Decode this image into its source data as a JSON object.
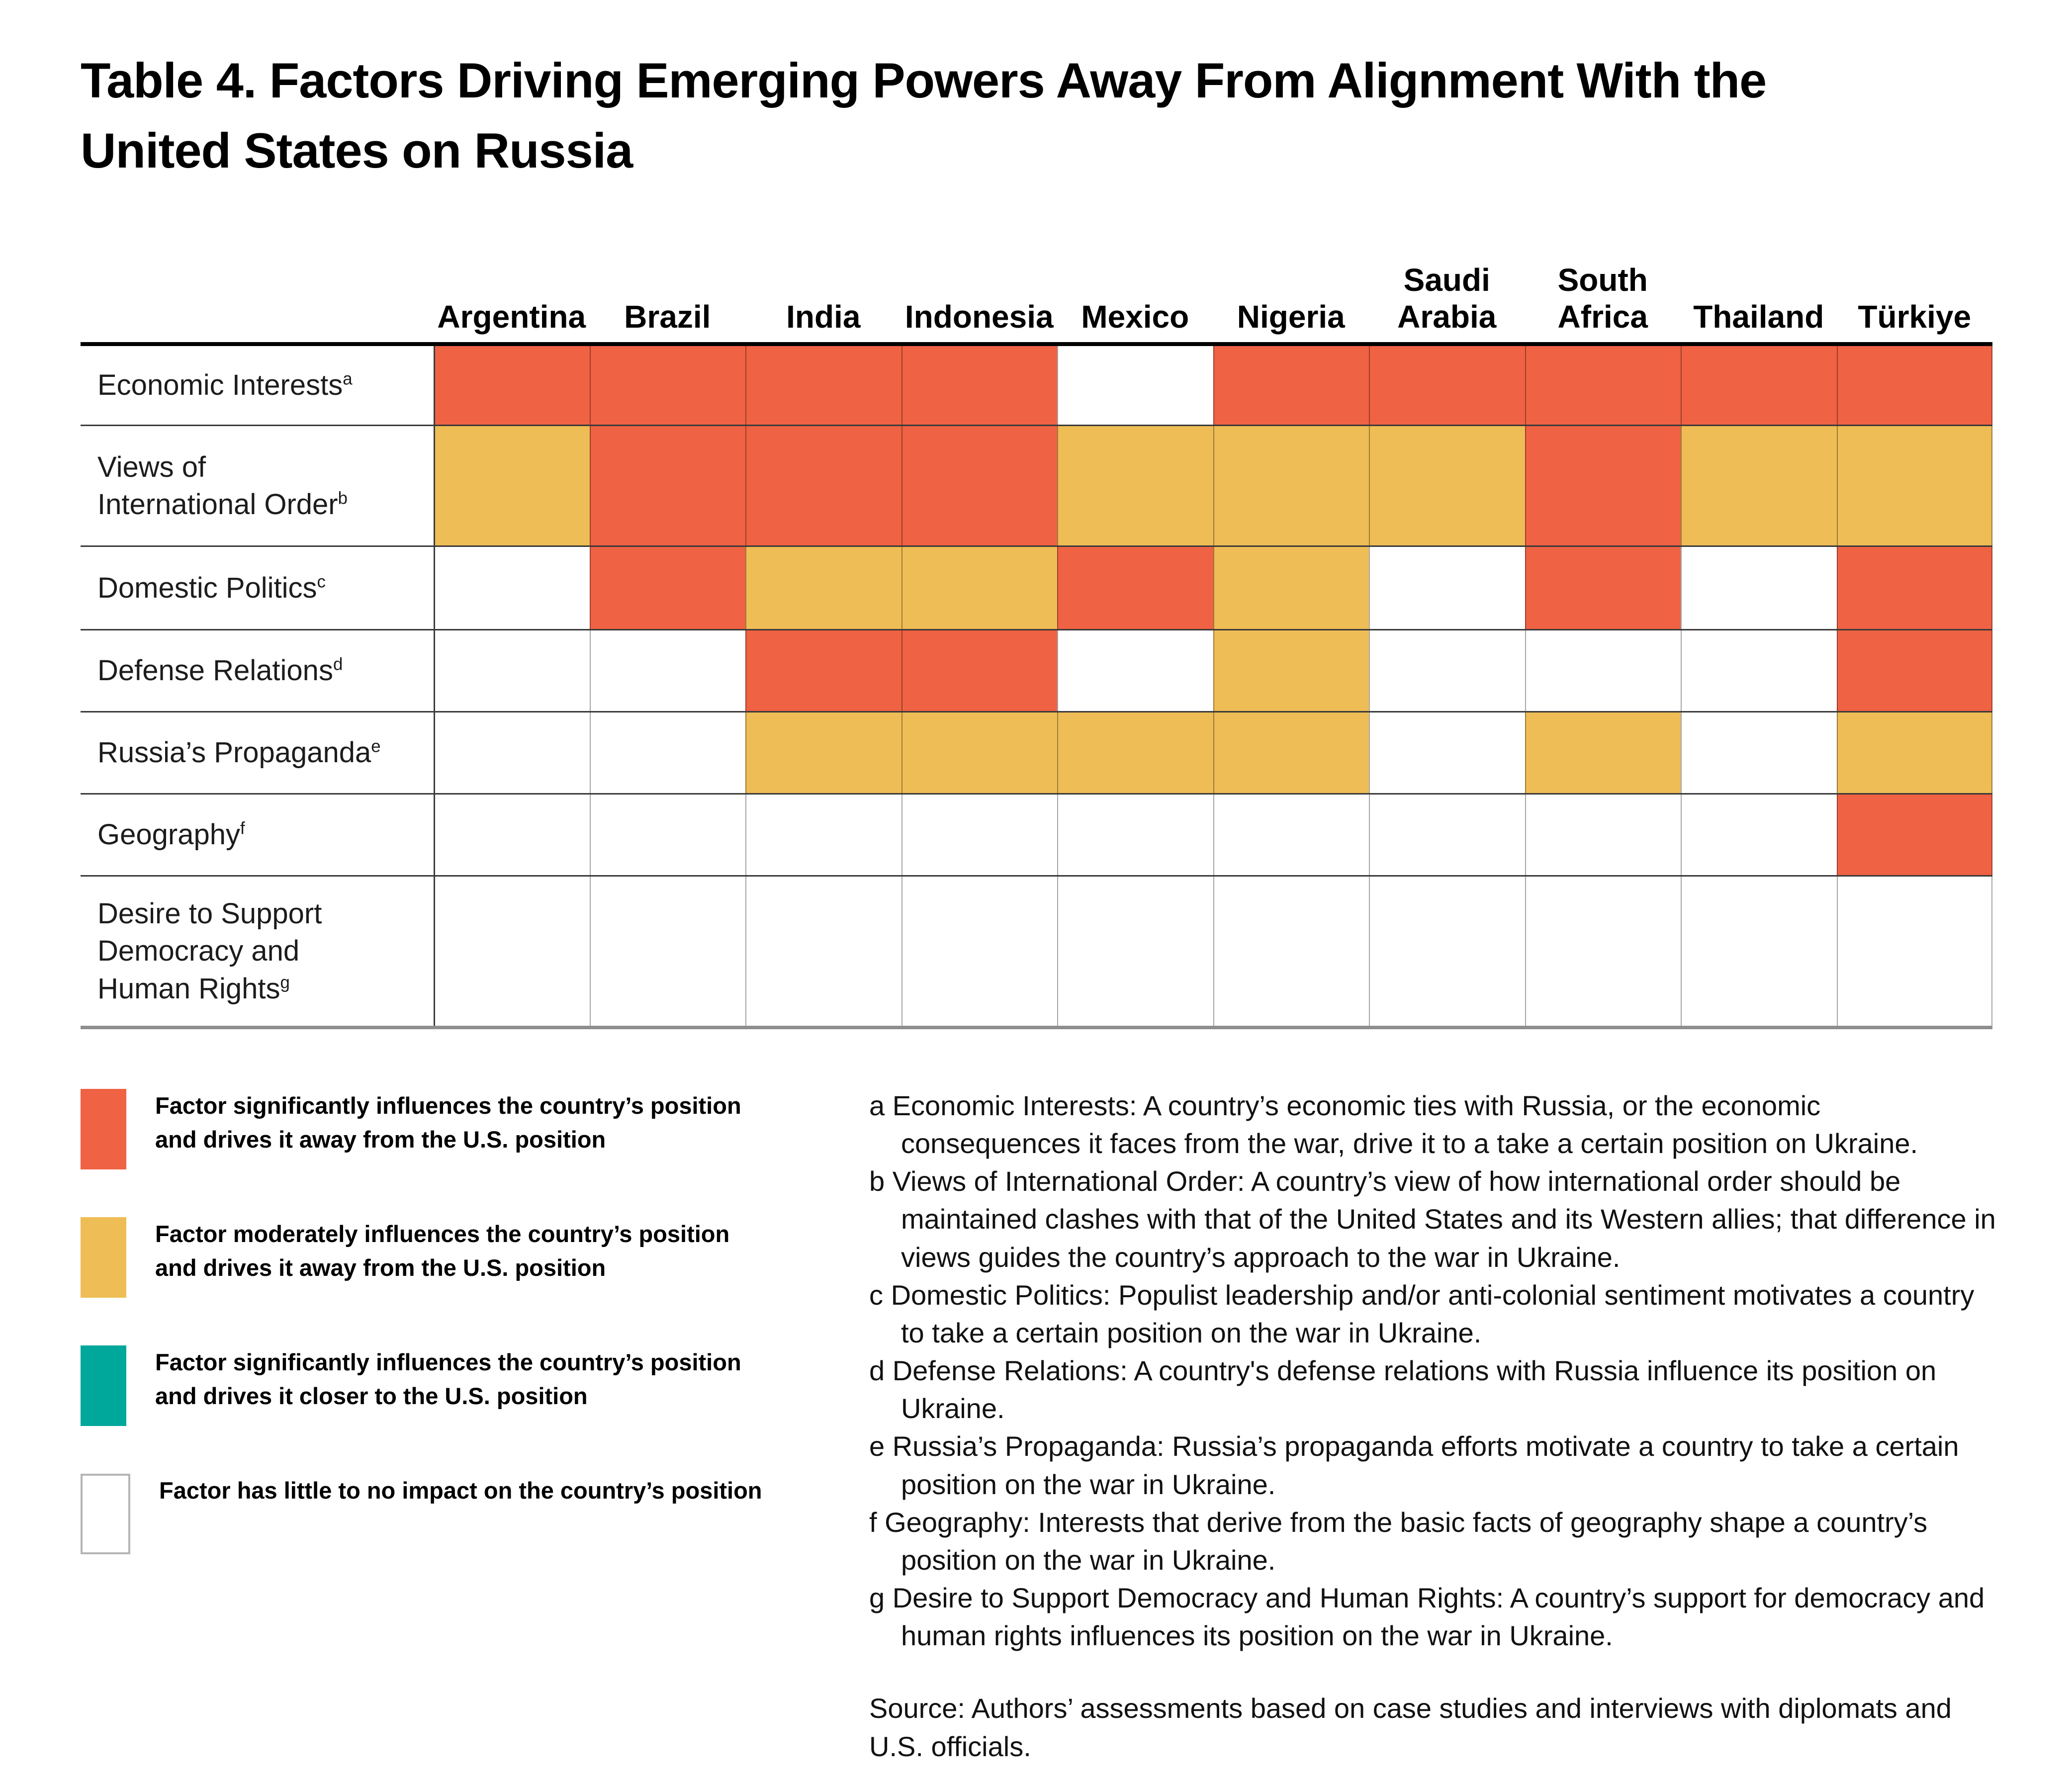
{
  "chart_data": {
    "type": "heatmap",
    "title": "Table 4. Factors Driving Emerging Powers Away From Alignment With the United States on Russia",
    "columns": [
      {
        "name": "argentina",
        "lines": [
          "Argentina"
        ]
      },
      {
        "name": "brazil",
        "lines": [
          "Brazil"
        ]
      },
      {
        "name": "india",
        "lines": [
          "India"
        ]
      },
      {
        "name": "indonesia",
        "lines": [
          "Indonesia"
        ]
      },
      {
        "name": "mexico",
        "lines": [
          "Mexico"
        ]
      },
      {
        "name": "nigeria",
        "lines": [
          "Nigeria"
        ]
      },
      {
        "name": "saudi-arabia",
        "lines": [
          "Saudi",
          "Arabia"
        ]
      },
      {
        "name": "south-africa",
        "lines": [
          "South",
          "Africa"
        ]
      },
      {
        "name": "thailand",
        "lines": [
          "Thailand"
        ]
      },
      {
        "name": "turkiye",
        "lines": [
          "Türkiye"
        ]
      }
    ],
    "rows": [
      {
        "name": "economic-interests",
        "label_lines": [
          "Economic Interests"
        ],
        "sup": "a",
        "cells": [
          "sig_away",
          "sig_away",
          "sig_away",
          "sig_away",
          "none",
          "sig_away",
          "sig_away",
          "sig_away",
          "sig_away",
          "sig_away"
        ]
      },
      {
        "name": "views-of-international-order",
        "label_lines": [
          "Views of",
          "International Order"
        ],
        "sup": "b",
        "cells": [
          "mod_away",
          "sig_away",
          "sig_away",
          "sig_away",
          "mod_away",
          "mod_away",
          "mod_away",
          "sig_away",
          "mod_away",
          "mod_away"
        ]
      },
      {
        "name": "domestic-politics",
        "label_lines": [
          "Domestic Politics"
        ],
        "sup": "c",
        "cells": [
          "none",
          "sig_away",
          "mod_away",
          "mod_away",
          "sig_away",
          "mod_away",
          "none",
          "sig_away",
          "none",
          "sig_away"
        ]
      },
      {
        "name": "defense-relations",
        "label_lines": [
          "Defense Relations"
        ],
        "sup": "d",
        "cells": [
          "none",
          "none",
          "sig_away",
          "sig_away",
          "none",
          "mod_away",
          "none",
          "none",
          "none",
          "sig_away"
        ]
      },
      {
        "name": "russias-propaganda",
        "label_lines": [
          "Russia’s Propaganda"
        ],
        "sup": "e",
        "cells": [
          "none",
          "none",
          "mod_away",
          "mod_away",
          "mod_away",
          "mod_away",
          "none",
          "mod_away",
          "none",
          "mod_away"
        ]
      },
      {
        "name": "geography",
        "label_lines": [
          "Geography"
        ],
        "sup": "f",
        "cells": [
          "none",
          "none",
          "none",
          "none",
          "none",
          "none",
          "none",
          "none",
          "none",
          "sig_away"
        ]
      },
      {
        "name": "desire-to-support-democracy-and-human-rights",
        "label_lines": [
          "Desire to Support",
          "Democracy and",
          "Human Rights"
        ],
        "sup": "g",
        "cells": [
          "none",
          "none",
          "none",
          "none",
          "none",
          "none",
          "none",
          "none",
          "none",
          "none"
        ]
      }
    ],
    "colors": {
      "sig_away": "#EF6243",
      "mod_away": "#EFBD55",
      "sig_closer": "#00A79B",
      "none": "#FFFFFF"
    },
    "legend": [
      {
        "key": "sig_away",
        "lines": [
          "Factor significantly influences the country’s position",
          "and drives it away from the U.S. position"
        ]
      },
      {
        "key": "mod_away",
        "lines": [
          "Factor moderately influences the country’s position",
          "and drives it away from the U.S. position"
        ]
      },
      {
        "key": "sig_closer",
        "lines": [
          "Factor significantly influences the country’s position",
          "and drives it closer to the U.S. position"
        ]
      },
      {
        "key": "none",
        "lines": [
          "Factor has little to no impact on the country’s position"
        ]
      }
    ],
    "footnotes": [
      {
        "marker": "a",
        "text": "Economic Interests: A country’s economic ties with Russia, or the economic consequences it faces from the war, drive it to a take a certain position on Ukraine."
      },
      {
        "marker": "b",
        "text": "Views of International Order: A country’s view of how international order should be maintained clashes with that of the United States and its Western allies; that difference in views guides the country’s approach to the war in Ukraine."
      },
      {
        "marker": "c",
        "text": "Domestic Politics: Populist leadership and/or anti-colonial sentiment motivates a country to take a certain position on the war in Ukraine."
      },
      {
        "marker": "d",
        "text": "Defense Relations: A country's defense relations with Russia influence its position on Ukraine."
      },
      {
        "marker": "e",
        "text": "Russia’s Propaganda: Russia’s propaganda efforts motivate a country to take a certain position on the war in Ukraine."
      },
      {
        "marker": "f",
        "text": "Geography: Interests that derive from the basic facts of geography shape a country’s position on the war in Ukraine."
      },
      {
        "marker": "g",
        "text": "Desire to Support Democracy and Human Rights: A country’s support for democracy and human rights influences its position on the war in Ukraine."
      }
    ],
    "source": "Source: Authors’ assessments based on case studies and interviews with diplomats and U.S. officials."
  }
}
